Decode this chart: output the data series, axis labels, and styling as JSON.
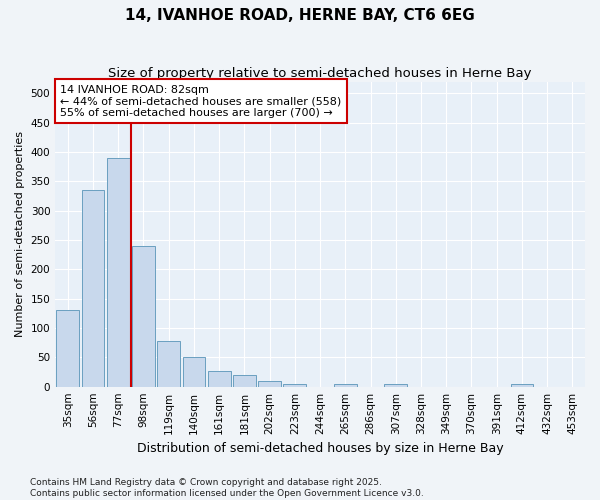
{
  "title": "14, IVANHOE ROAD, HERNE BAY, CT6 6EG",
  "subtitle": "Size of property relative to semi-detached houses in Herne Bay",
  "xlabel": "Distribution of semi-detached houses by size in Herne Bay",
  "ylabel": "Number of semi-detached properties",
  "categories": [
    "35sqm",
    "56sqm",
    "77sqm",
    "98sqm",
    "119sqm",
    "140sqm",
    "161sqm",
    "181sqm",
    "202sqm",
    "223sqm",
    "244sqm",
    "265sqm",
    "286sqm",
    "307sqm",
    "328sqm",
    "349sqm",
    "370sqm",
    "391sqm",
    "412sqm",
    "432sqm",
    "453sqm"
  ],
  "values": [
    130,
    335,
    390,
    240,
    78,
    50,
    26,
    20,
    10,
    5,
    0,
    5,
    0,
    4,
    0,
    0,
    0,
    0,
    4,
    0,
    0
  ],
  "bar_color": "#c8d8ec",
  "bar_edge_color": "#6a9fc0",
  "red_line_index": 2,
  "annotation_text": "14 IVANHOE ROAD: 82sqm\n← 44% of semi-detached houses are smaller (558)\n55% of semi-detached houses are larger (700) →",
  "annotation_box_facecolor": "#ffffff",
  "annotation_box_edgecolor": "#cc0000",
  "ylim": [
    0,
    520
  ],
  "yticks": [
    0,
    50,
    100,
    150,
    200,
    250,
    300,
    350,
    400,
    450,
    500
  ],
  "plot_bg_color": "#e8f0f8",
  "fig_bg_color": "#f0f4f8",
  "grid_color": "#ffffff",
  "footer": "Contains HM Land Registry data © Crown copyright and database right 2025.\nContains public sector information licensed under the Open Government Licence v3.0.",
  "title_fontsize": 11,
  "subtitle_fontsize": 9.5,
  "xlabel_fontsize": 9,
  "ylabel_fontsize": 8,
  "tick_fontsize": 7.5,
  "annotation_fontsize": 8,
  "footer_fontsize": 6.5
}
